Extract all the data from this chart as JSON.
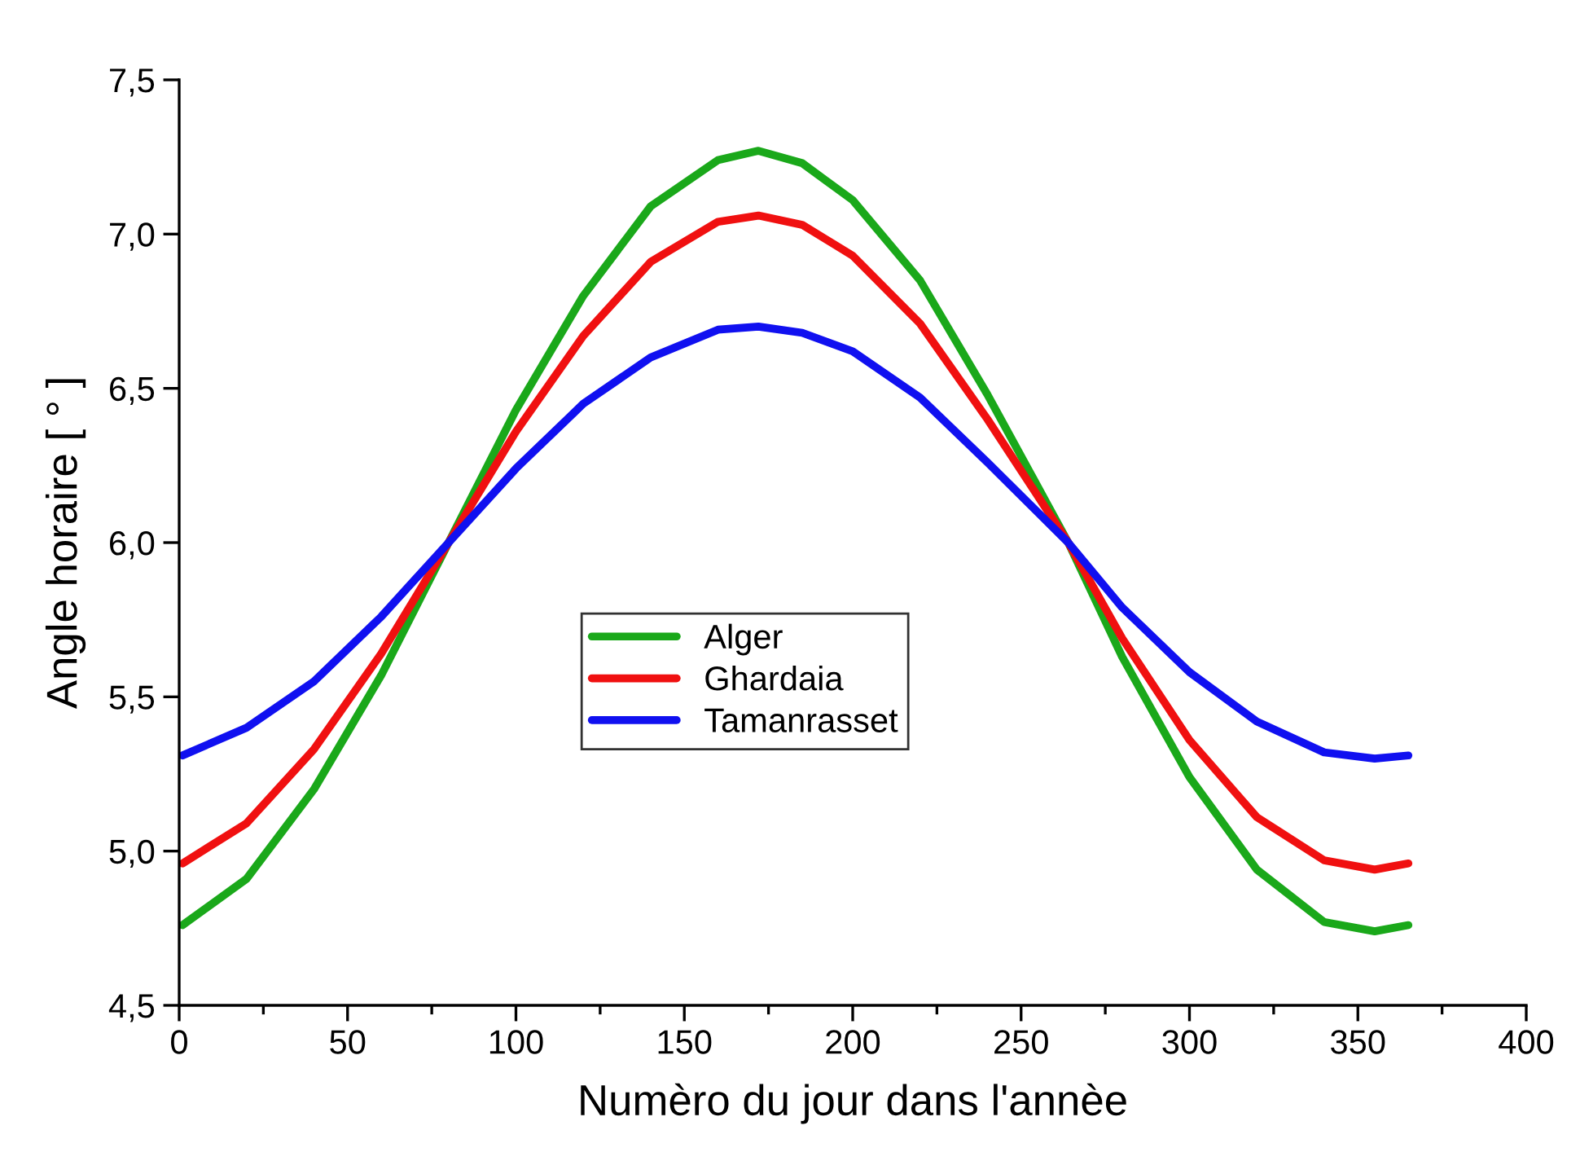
{
  "chart_data": {
    "type": "line",
    "xlabel": "Numèro du jour dans l'annèe",
    "ylabel": "Angle horaire [ ° ]",
    "x": [
      1,
      20,
      40,
      60,
      80,
      100,
      120,
      140,
      160,
      172,
      185,
      200,
      220,
      240,
      264,
      280,
      300,
      320,
      340,
      355,
      365
    ],
    "series": [
      {
        "name": "Alger",
        "color": "#1aa81a",
        "values": [
          4.76,
          4.91,
          5.2,
          5.57,
          6.0,
          6.43,
          6.8,
          7.09,
          7.24,
          7.27,
          7.23,
          7.11,
          6.85,
          6.48,
          6.0,
          5.63,
          5.24,
          4.94,
          4.77,
          4.74,
          4.76
        ]
      },
      {
        "name": "Ghardaia",
        "color": "#f01010",
        "values": [
          4.96,
          5.09,
          5.33,
          5.64,
          6.0,
          6.36,
          6.67,
          6.91,
          7.04,
          7.06,
          7.03,
          6.93,
          6.71,
          6.4,
          6.0,
          5.69,
          5.36,
          5.11,
          4.97,
          4.94,
          4.96
        ]
      },
      {
        "name": "Tamanrasset",
        "color": "#1010f0",
        "values": [
          5.31,
          5.4,
          5.55,
          5.76,
          6.0,
          6.24,
          6.45,
          6.6,
          6.69,
          6.7,
          6.68,
          6.62,
          6.47,
          6.26,
          6.0,
          5.79,
          5.58,
          5.42,
          5.32,
          5.3,
          5.31
        ]
      }
    ],
    "xlim": [
      0,
      400
    ],
    "xticks": [
      0,
      50,
      100,
      150,
      200,
      250,
      300,
      350,
      400
    ],
    "ylim": [
      4.5,
      7.5
    ],
    "yticks": [
      {
        "value": 4.5,
        "label": "4,5"
      },
      {
        "value": 5.0,
        "label": "5,0"
      },
      {
        "value": 5.5,
        "label": "5,5"
      },
      {
        "value": 6.0,
        "label": "6,0"
      },
      {
        "value": 6.5,
        "label": "6,5"
      },
      {
        "value": 7.0,
        "label": "7,0"
      },
      {
        "value": 7.5,
        "label": "7,5"
      }
    ],
    "grid": false,
    "legend": "center",
    "marker": "none",
    "line_style": "solid"
  }
}
